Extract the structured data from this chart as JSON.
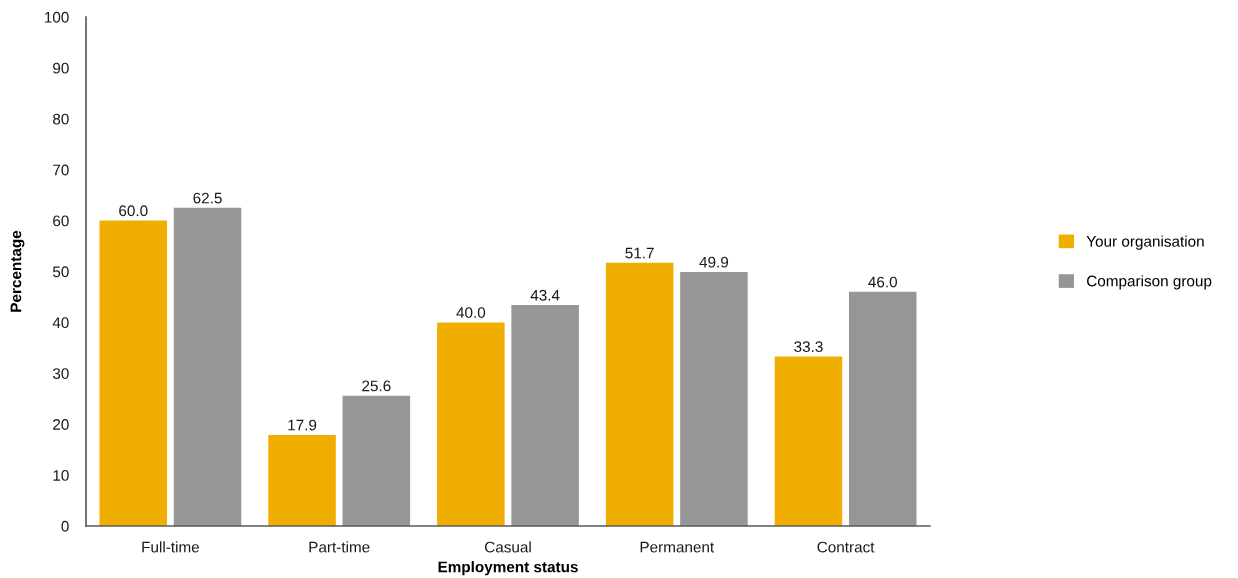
{
  "chart_data": {
    "type": "bar",
    "xlabel": "Employment status",
    "ylabel": "Percentage",
    "categories": [
      "Full-time",
      "Part-time",
      "Casual",
      "Permanent",
      "Contract"
    ],
    "series": [
      {
        "name": "Your organisation",
        "color": "#f0ae00",
        "values": [
          60.0,
          17.9,
          40.0,
          51.7,
          33.3
        ],
        "value_labels": [
          "60.0",
          "17.9",
          "40.0",
          "51.7",
          "33.3"
        ]
      },
      {
        "name": "Comparison group",
        "color": "#969696",
        "values": [
          62.5,
          25.6,
          43.4,
          49.9,
          46.0
        ],
        "value_labels": [
          "62.5",
          "25.6",
          "43.4",
          "49.9",
          "46.0"
        ]
      }
    ],
    "ylim": [
      0,
      100
    ],
    "yticks": [
      0,
      10,
      20,
      30,
      40,
      50,
      60,
      70,
      80,
      90,
      100
    ],
    "grid": false,
    "legend": "right"
  }
}
